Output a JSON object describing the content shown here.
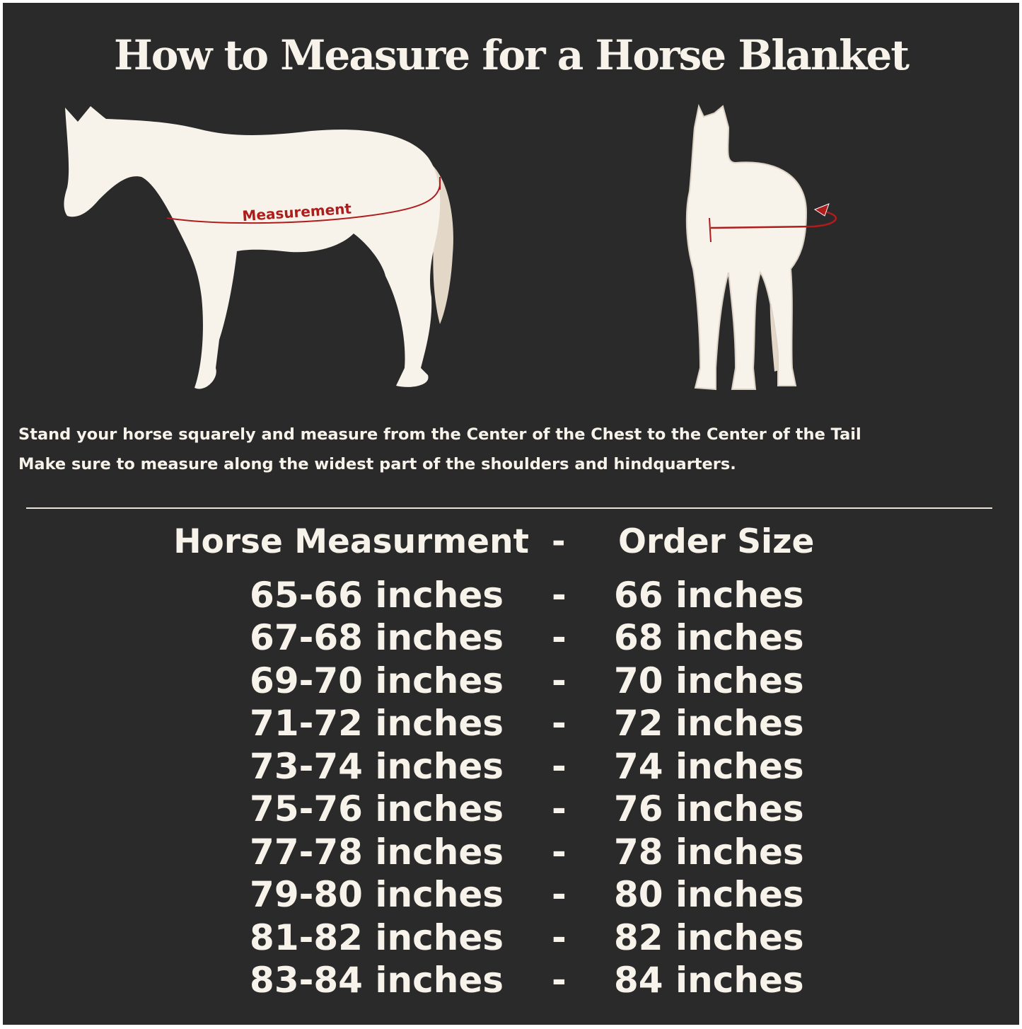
{
  "title": "How to Measure for a Horse Blanket",
  "diagram": {
    "side_label": "Measurement",
    "colors": {
      "background": "#2a2a2a",
      "horse": "#f7f2ea",
      "tail": "#e3d7c8",
      "measure_line": "#b01c1c"
    }
  },
  "instructions": [
    "Stand your horse squarely and measure from the Center of the Chest to the Center of the Tail",
    "Make sure to measure along the widest part of the shoulders and hindquarters."
  ],
  "table": {
    "header": {
      "measurement": "Horse Measurment",
      "separator": "-",
      "size": "Order Size"
    },
    "rows": [
      {
        "measurement": "65-66 inches",
        "separator": "-",
        "size": "66 inches"
      },
      {
        "measurement": "67-68 inches",
        "separator": "-",
        "size": "68 inches"
      },
      {
        "measurement": "69-70 inches",
        "separator": "-",
        "size": "70 inches"
      },
      {
        "measurement": "71-72 inches",
        "separator": "-",
        "size": "72 inches"
      },
      {
        "measurement": "73-74 inches",
        "separator": "-",
        "size": "74 inches"
      },
      {
        "measurement": "75-76 inches",
        "separator": "-",
        "size": "76 inches"
      },
      {
        "measurement": "77-78 inches",
        "separator": "-",
        "size": "78 inches"
      },
      {
        "measurement": "79-80 inches",
        "separator": "-",
        "size": "80 inches"
      },
      {
        "measurement": "81-82 inches",
        "separator": "-",
        "size": "82 inches"
      },
      {
        "measurement": "83-84 inches",
        "separator": "-",
        "size": "84 inches"
      }
    ]
  }
}
